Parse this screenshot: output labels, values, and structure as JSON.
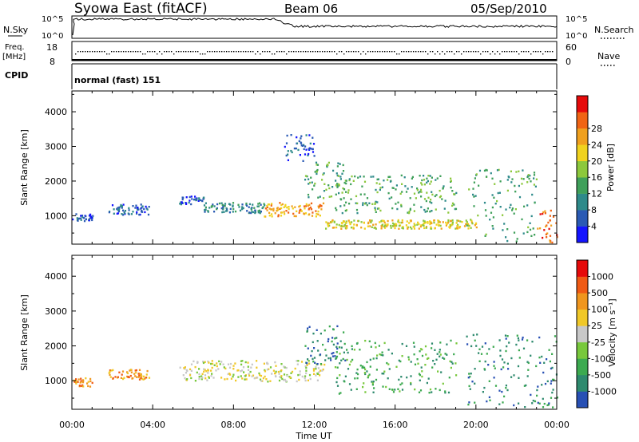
{
  "header": {
    "station": "Syowa East (fitACF)",
    "beam": "Beam 06",
    "date": "05/Sep/2010"
  },
  "panels": {
    "noise": {
      "left_label": "N.Sky",
      "right_label": "N.Search",
      "left_ticks": [
        "10^5",
        "10^0"
      ],
      "right_ticks": [
        "10^5",
        "10^0"
      ]
    },
    "freq": {
      "left_label_1": "Freq.",
      "left_label_2": "[MHz]",
      "right_label": "Nave",
      "left_ticks": [
        "18",
        "8"
      ],
      "right_ticks": [
        "60",
        "0"
      ]
    },
    "cpid": {
      "label": "CPID",
      "text": "normal (fast) 151"
    }
  },
  "chart_data": [
    {
      "type": "heatmap",
      "name": "power",
      "xlabel": "Time UT",
      "ylabel": "Slant Range [km]",
      "xlim": [
        0,
        24
      ],
      "ylim": [
        180,
        4600
      ],
      "x_ticks": [
        "00:00",
        "04:00",
        "08:00",
        "12:00",
        "16:00",
        "20:00",
        "00:00"
      ],
      "y_ticks": [
        1000,
        2000,
        3000,
        4000
      ],
      "colorbar": {
        "label": "Power [dB]",
        "tick_labels": [
          "4",
          "8",
          "12",
          "16",
          "20",
          "24",
          "28"
        ],
        "colors": [
          "#1414ff",
          "#2a5ab4",
          "#2e8a8a",
          "#3fa05a",
          "#8cc83c",
          "#f0d21e",
          "#f0a01e",
          "#f06414",
          "#e60a0a"
        ]
      },
      "regions": [
        {
          "t0": 0.0,
          "t1": 1.0,
          "r0": 850,
          "r1": 1100,
          "level": 1
        },
        {
          "t0": 1.8,
          "t1": 3.8,
          "r0": 1050,
          "r1": 1350,
          "level": 1
        },
        {
          "t0": 5.3,
          "t1": 6.5,
          "r0": 1350,
          "r1": 1600,
          "level": 1
        },
        {
          "t0": 6.5,
          "t1": 9.5,
          "r0": 1100,
          "r1": 1400,
          "level": 2
        },
        {
          "t0": 9.5,
          "t1": 12.5,
          "r0": 1000,
          "r1": 1400,
          "level": 6
        },
        {
          "t0": 10.5,
          "t1": 12.0,
          "r0": 2600,
          "r1": 3400,
          "level": 1
        },
        {
          "t0": 11.5,
          "t1": 13.5,
          "r0": 1500,
          "r1": 2600,
          "level": 3
        },
        {
          "t0": 12.5,
          "t1": 20.0,
          "r0": 650,
          "r1": 900,
          "level": 5
        },
        {
          "t0": 13.0,
          "t1": 19.0,
          "r0": 1100,
          "r1": 2200,
          "level": 3
        },
        {
          "t0": 19.5,
          "t1": 23.0,
          "r0": 250,
          "r1": 2400,
          "level": 3
        },
        {
          "t0": 23.0,
          "t1": 24.0,
          "r0": 250,
          "r1": 1200,
          "level": 7
        }
      ]
    },
    {
      "type": "heatmap",
      "name": "velocity",
      "xlabel": "Time UT",
      "ylabel": "Slant Range [km]",
      "xlim": [
        0,
        24
      ],
      "ylim": [
        180,
        4600
      ],
      "x_ticks": [
        "00:00",
        "04:00",
        "08:00",
        "12:00",
        "16:00",
        "20:00",
        "00:00"
      ],
      "y_ticks": [
        1000,
        2000,
        3000,
        4000
      ],
      "colorbar": {
        "label": "Velocity [m s⁻¹]",
        "tick_labels": [
          "1000",
          "500",
          "100",
          "25",
          "-25",
          "-100",
          "-500",
          "-1000"
        ],
        "colors": [
          "#2850b4",
          "#2e8a6e",
          "#3caa50",
          "#78c83c",
          "#c8c8c8",
          "#f0c828",
          "#f0961e",
          "#f05a14",
          "#e60a0a"
        ]
      },
      "regions": [
        {
          "t0": 0.0,
          "t1": 1.0,
          "r0": 850,
          "r1": 1100,
          "level": 6
        },
        {
          "t0": 1.8,
          "t1": 3.8,
          "r0": 1050,
          "r1": 1350,
          "level": 6
        },
        {
          "t0": 5.3,
          "t1": 12.5,
          "r0": 1000,
          "r1": 1600,
          "level": 4
        },
        {
          "t0": 11.5,
          "t1": 13.5,
          "r0": 1500,
          "r1": 2600,
          "level": 1
        },
        {
          "t0": 13.0,
          "t1": 19.0,
          "r0": 650,
          "r1": 2200,
          "level": 2
        },
        {
          "t0": 19.5,
          "t1": 24.0,
          "r0": 250,
          "r1": 2400,
          "level": 1
        }
      ]
    }
  ]
}
